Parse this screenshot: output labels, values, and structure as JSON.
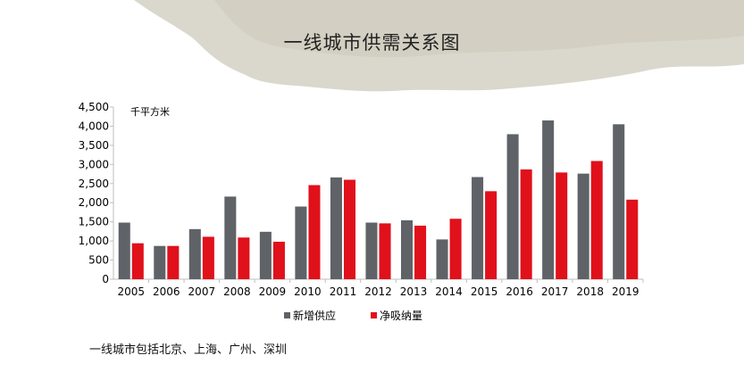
{
  "page": {
    "title": "一线城市供需关系图",
    "note": "一线城市包括北京、上海、广州、深圳"
  },
  "chart_data": {
    "type": "bar",
    "title": "一线城市供需关系图",
    "ylabel": "千平方米",
    "xlabel": "",
    "ylim": [
      0,
      4500
    ],
    "yticks": [
      "0",
      "500",
      "1,000",
      "1,500",
      "2,000",
      "2,500",
      "3,000",
      "3,500",
      "4,000",
      "4,500"
    ],
    "categories": [
      "2005",
      "2006",
      "2007",
      "2008",
      "2009",
      "2010",
      "2011",
      "2012",
      "2013",
      "2014",
      "2015",
      "2016",
      "2017",
      "2018",
      "2019"
    ],
    "series": [
      {
        "name": "新增供应",
        "color": "#5f6368",
        "values": [
          1480,
          870,
          1310,
          2160,
          1240,
          1900,
          2660,
          1480,
          1540,
          1040,
          2670,
          3790,
          4150,
          2760,
          4050
        ]
      },
      {
        "name": "净吸纳量",
        "color": "#e0111b",
        "values": [
          940,
          870,
          1110,
          1090,
          980,
          2460,
          2600,
          1460,
          1400,
          1580,
          2300,
          2870,
          2790,
          3090,
          2080
        ]
      }
    ],
    "grid": false,
    "legend": "bottom"
  }
}
